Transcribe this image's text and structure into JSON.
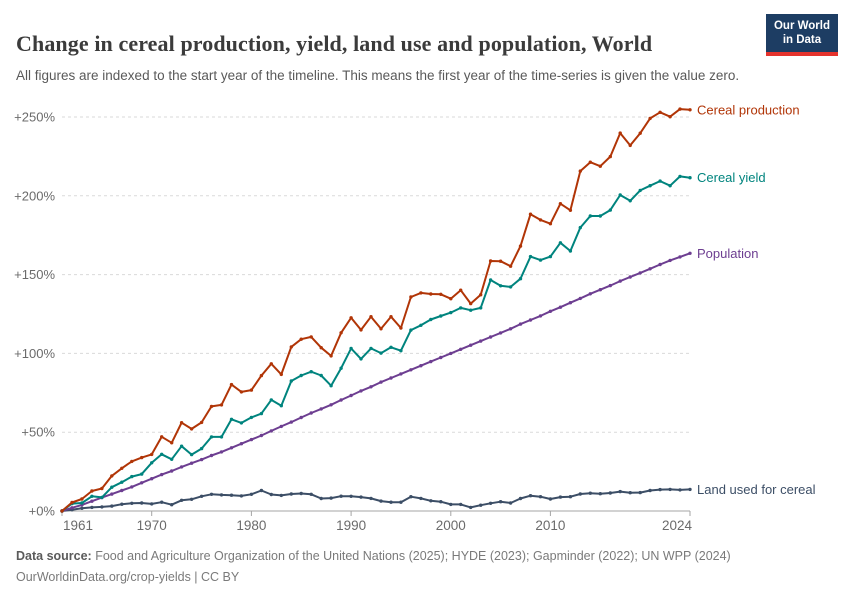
{
  "header": {
    "title": "Change in cereal production, yield, land use and population, World",
    "subtitle": "All figures are indexed to the start year of the timeline. This means the first year of the time-series is given the value zero.",
    "logo": {
      "line1": "Our World",
      "line2": "in Data",
      "bg_color": "#1d3d63",
      "accent_color": "#e5332d"
    }
  },
  "chart_data": {
    "type": "line",
    "title": "Change in cereal production, yield, land use and population, World",
    "xlabel": "",
    "ylabel": "",
    "x_range": [
      1961,
      2024
    ],
    "ylim": [
      0,
      260
    ],
    "grid": "horizontal-dashed",
    "legend_position": "labels-at-line-ends-right",
    "years": [
      1961,
      1962,
      1963,
      1964,
      1965,
      1966,
      1967,
      1968,
      1969,
      1970,
      1971,
      1972,
      1973,
      1974,
      1975,
      1976,
      1977,
      1978,
      1979,
      1980,
      1981,
      1982,
      1983,
      1984,
      1985,
      1986,
      1987,
      1988,
      1989,
      1990,
      1991,
      1992,
      1993,
      1994,
      1995,
      1996,
      1997,
      1998,
      1999,
      2000,
      2001,
      2002,
      2003,
      2004,
      2005,
      2006,
      2007,
      2008,
      2009,
      2010,
      2011,
      2012,
      2013,
      2014,
      2015,
      2016,
      2017,
      2018,
      2019,
      2020,
      2021,
      2022,
      2023,
      2024
    ],
    "y_ticks": [
      {
        "value": 0,
        "label": "+0%"
      },
      {
        "value": 50,
        "label": "+50%"
      },
      {
        "value": 100,
        "label": "+100%"
      },
      {
        "value": 150,
        "label": "+150%"
      },
      {
        "value": 200,
        "label": "+200%"
      },
      {
        "value": 250,
        "label": "+250%"
      }
    ],
    "x_ticks": [
      {
        "value": 1961,
        "label": "1961"
      },
      {
        "value": 1970,
        "label": "1970"
      },
      {
        "value": 1980,
        "label": "1980"
      },
      {
        "value": 1990,
        "label": "1990"
      },
      {
        "value": 2000,
        "label": "2000"
      },
      {
        "value": 2010,
        "label": "2010"
      },
      {
        "value": 2024,
        "label": "2024"
      }
    ],
    "series": [
      {
        "name": "Cereal production",
        "color": "#B13507",
        "values": [
          0,
          5.4,
          7.6,
          12.7,
          14.3,
          22.3,
          27.1,
          31.5,
          33.9,
          35.9,
          47.1,
          43.3,
          56.0,
          52.1,
          56.2,
          66.4,
          67.3,
          80.2,
          75.6,
          76.7,
          85.9,
          93.4,
          86.7,
          104.1,
          109.0,
          110.5,
          103.6,
          98.4,
          113.1,
          122.6,
          114.9,
          123.3,
          115.6,
          123.3,
          116.1,
          135.8,
          138.4,
          137.7,
          137.5,
          134.7,
          140.1,
          131.6,
          137.2,
          158.6,
          158.5,
          155.3,
          168.1,
          188.3,
          184.7,
          182.3,
          195.0,
          190.8,
          215.7,
          221.3,
          218.8,
          224.9,
          239.8,
          232.0,
          239.7,
          249.1,
          253.0,
          250.2,
          255.0,
          254.6
        ]
      },
      {
        "name": "Cereal yield",
        "color": "#00847E",
        "values": [
          0,
          4.7,
          5.1,
          9.3,
          8.6,
          15.1,
          18.3,
          21.8,
          23.4,
          30.6,
          36.0,
          32.8,
          41.1,
          35.8,
          39.6,
          47.0,
          47.0,
          58.2,
          55.9,
          59.4,
          61.8,
          70.5,
          66.8,
          82.5,
          86.0,
          88.4,
          86.0,
          79.5,
          90.6,
          103.2,
          96.5,
          103.2,
          100.2,
          103.9,
          101.7,
          114.8,
          117.8,
          121.5,
          123.7,
          125.9,
          128.9,
          127.4,
          128.9,
          146.6,
          142.9,
          142.2,
          147.4,
          161.4,
          159.2,
          161.4,
          170.2,
          165.0,
          179.8,
          187.2,
          187.2,
          190.9,
          200.5,
          196.8,
          203.4,
          206.4,
          209.3,
          206.4,
          212.3,
          211.5
        ]
      },
      {
        "name": "Population",
        "color": "#6D3E91",
        "values": [
          0,
          2.0,
          3.9,
          6.2,
          8.5,
          10.7,
          13.0,
          15.3,
          17.9,
          20.5,
          23.1,
          25.4,
          28.0,
          30.3,
          32.6,
          35.2,
          37.5,
          40.1,
          42.7,
          45.3,
          47.9,
          50.8,
          53.7,
          56.4,
          59.3,
          62.2,
          64.8,
          67.4,
          70.4,
          73.3,
          76.2,
          78.8,
          81.8,
          84.4,
          87.0,
          89.6,
          92.2,
          94.8,
          97.4,
          100.0,
          102.6,
          105.2,
          107.8,
          110.4,
          113.0,
          115.6,
          118.6,
          121.2,
          123.8,
          126.7,
          129.3,
          132.2,
          134.9,
          137.8,
          140.4,
          143.0,
          145.9,
          148.5,
          151.1,
          153.7,
          156.4,
          159.0,
          161.2,
          163.5
        ]
      },
      {
        "name": "Land used for cereal",
        "color": "#3C4E66",
        "values": [
          0,
          0.8,
          1.7,
          2.3,
          2.6,
          3.1,
          4.3,
          4.9,
          5.1,
          4.5,
          5.6,
          4.0,
          6.8,
          7.4,
          9.3,
          10.6,
          10.2,
          10.0,
          9.6,
          10.6,
          13.0,
          10.5,
          9.9,
          10.8,
          11.1,
          10.6,
          7.9,
          8.2,
          9.4,
          9.3,
          8.8,
          8.0,
          6.3,
          5.6,
          5.6,
          9.1,
          8.0,
          6.5,
          5.9,
          4.2,
          4.2,
          2.3,
          3.7,
          4.9,
          5.9,
          5.1,
          7.9,
          9.7,
          9.1,
          7.6,
          8.8,
          9.1,
          10.8,
          11.3,
          11.0,
          11.4,
          12.3,
          11.6,
          11.7,
          13.0,
          13.6,
          13.7,
          13.4,
          13.7
        ]
      }
    ],
    "style": {
      "grid_color": "#dadada",
      "axis_color": "#a5a5a5",
      "tick_label_color": "#6b6b6b"
    }
  },
  "footer": {
    "source_label": "Data source:",
    "source_text": " Food and Agriculture Organization of the United Nations (2025); HYDE (2023); Gapminder (2022); UN WPP (2024)",
    "link_line": "OurWorldinData.org/crop-yields | CC BY"
  }
}
